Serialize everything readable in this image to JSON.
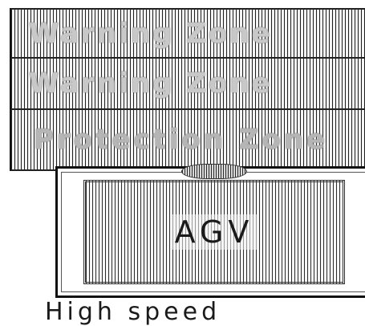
{
  "zones": [
    {
      "label": "Warning Zone"
    },
    {
      "label": "Warning Zone"
    },
    {
      "label": "Protection Zone"
    }
  ],
  "vehicle": {
    "label": "AGV"
  },
  "speed": {
    "label": "High speed"
  },
  "colors": {
    "stripe": "#1e1e1e",
    "background": "#ffffff",
    "zone_text": "#c8c8c8",
    "outline": "#111111"
  }
}
